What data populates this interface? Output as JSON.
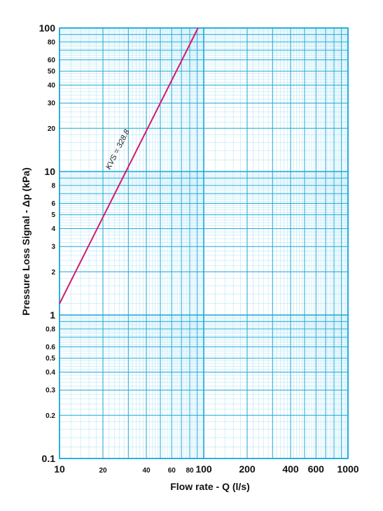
{
  "chart_data": {
    "type": "line",
    "xscale": "log",
    "yscale": "log",
    "xlim": [
      10,
      1000
    ],
    "ylim": [
      0.1,
      100
    ],
    "xlabel": "Flow rate - Q (l/s)",
    "ylabel": "Pressure Loss Signal  - Δp (kPa)",
    "grid": true,
    "x_ticks": [
      {
        "value": 10,
        "label": "10",
        "size": "major"
      },
      {
        "value": 20,
        "label": "20",
        "size": "minor"
      },
      {
        "value": 40,
        "label": "40",
        "size": "minor"
      },
      {
        "value": 60,
        "label": "60",
        "size": "minor"
      },
      {
        "value": 80,
        "label": "80",
        "size": "minor"
      },
      {
        "value": 100,
        "label": "100",
        "size": "major"
      },
      {
        "value": 200,
        "label": "200",
        "size": "major"
      },
      {
        "value": 400,
        "label": "400",
        "size": "major"
      },
      {
        "value": 600,
        "label": "600",
        "size": "major"
      },
      {
        "value": 1000,
        "label": "1000",
        "size": "major"
      }
    ],
    "y_ticks": [
      {
        "value": 100,
        "label": "100",
        "size": "major"
      },
      {
        "value": 80,
        "label": "80",
        "size": "minor"
      },
      {
        "value": 60,
        "label": "60",
        "size": "minor"
      },
      {
        "value": 50,
        "label": "50",
        "size": "minor"
      },
      {
        "value": 40,
        "label": "40",
        "size": "minor"
      },
      {
        "value": 30,
        "label": "30",
        "size": "minor"
      },
      {
        "value": 20,
        "label": "20",
        "size": "minor"
      },
      {
        "value": 10,
        "label": "10",
        "size": "major"
      },
      {
        "value": 8,
        "label": "8",
        "size": "minor"
      },
      {
        "value": 6,
        "label": "6",
        "size": "minor"
      },
      {
        "value": 5,
        "label": "5",
        "size": "minor"
      },
      {
        "value": 4,
        "label": "4",
        "size": "minor"
      },
      {
        "value": 3,
        "label": "3",
        "size": "minor"
      },
      {
        "value": 2,
        "label": "2",
        "size": "minor"
      },
      {
        "value": 1,
        "label": "1",
        "size": "major"
      },
      {
        "value": 0.8,
        "label": "0.8",
        "size": "minor"
      },
      {
        "value": 0.6,
        "label": "0.6",
        "size": "minor"
      },
      {
        "value": 0.5,
        "label": "0.5",
        "size": "minor"
      },
      {
        "value": 0.4,
        "label": "0.4",
        "size": "minor"
      },
      {
        "value": 0.3,
        "label": "0.3",
        "size": "minor"
      },
      {
        "value": 0.2,
        "label": "0.2",
        "size": "minor"
      },
      {
        "value": 0.1,
        "label": "0.1",
        "size": "major"
      }
    ],
    "series": [
      {
        "name": "KVS = 328.8",
        "color": "#d6176a",
        "x": [
          10,
          20,
          30,
          40,
          50,
          60,
          70,
          80,
          91.2
        ],
        "y": [
          1.2,
          4.8,
          10.8,
          19.2,
          30.0,
          43.2,
          58.8,
          76.8,
          100
        ]
      }
    ],
    "annotations": [
      {
        "text": "KVS = 328.8",
        "x": 28,
        "y": 14
      }
    ],
    "colors": {
      "major_grid": "#1aa7d8",
      "minor_grid": "#a8e2f5",
      "series": "#d6176a"
    }
  }
}
